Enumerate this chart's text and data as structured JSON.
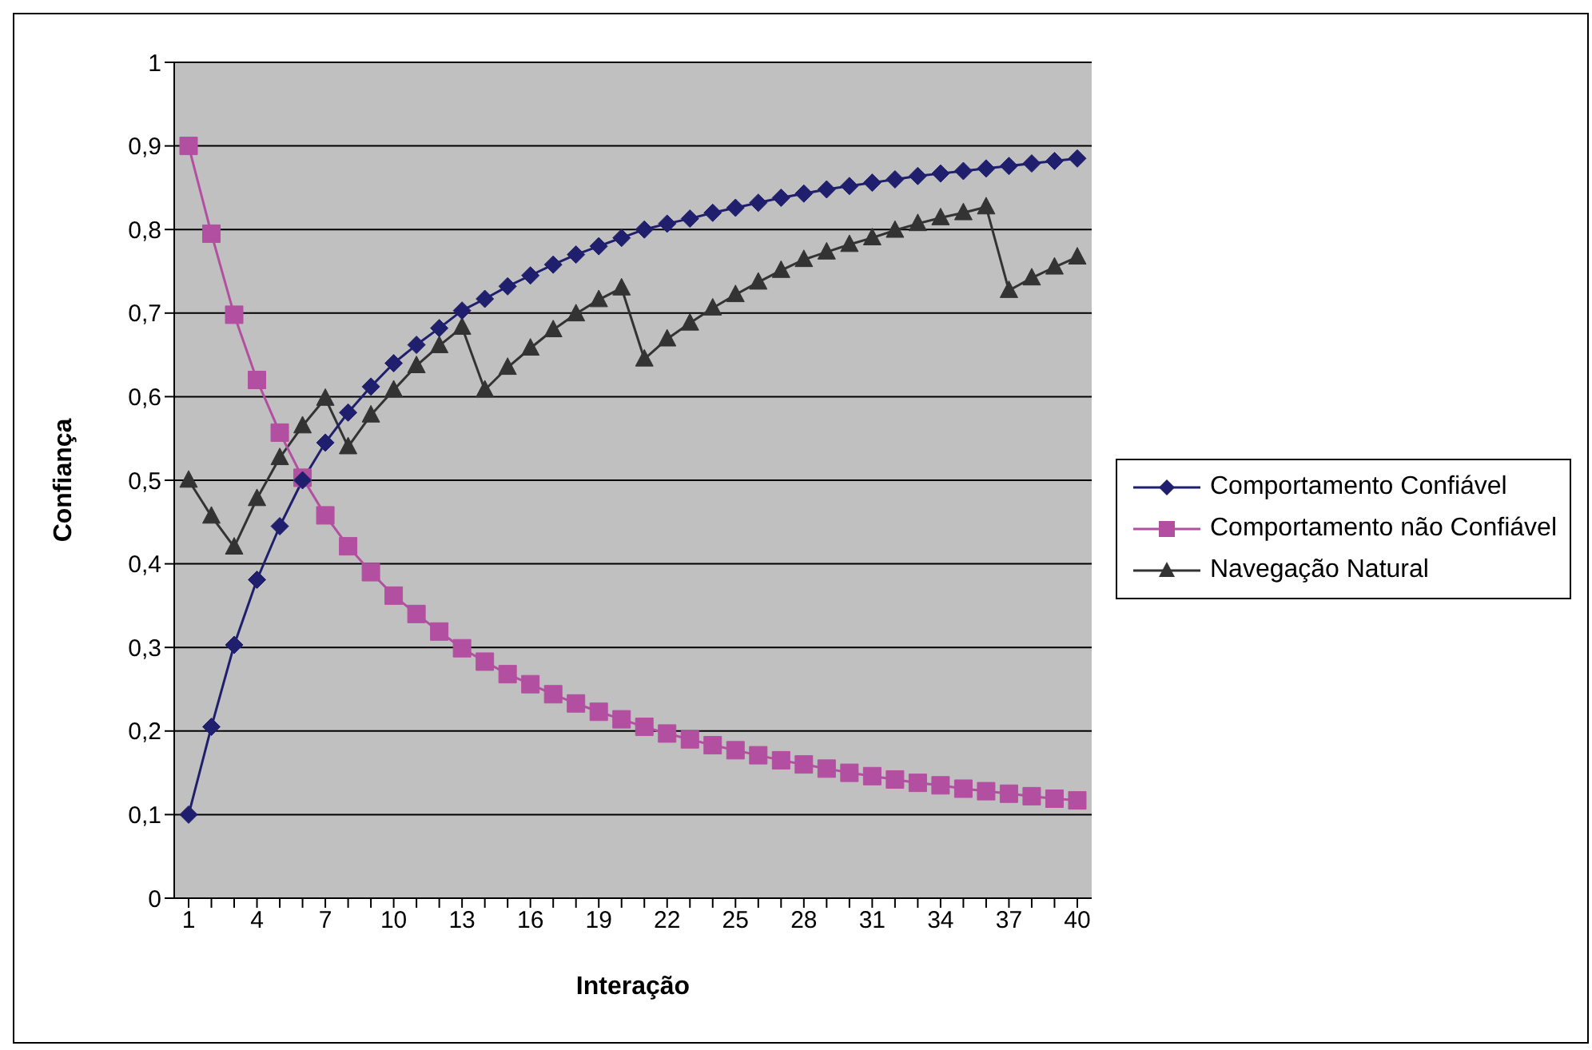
{
  "chart_data": {
    "type": "line",
    "xlabel": "Interação",
    "ylabel": "Confiança",
    "categories": [
      "1",
      null,
      null,
      "4",
      null,
      null,
      "7",
      null,
      null,
      "10",
      null,
      null,
      "13",
      null,
      null,
      "16",
      null,
      null,
      "19",
      null,
      null,
      "22",
      null,
      null,
      "25",
      null,
      null,
      "28",
      null,
      null,
      "31",
      null,
      null,
      "34",
      null,
      null,
      "37",
      null,
      null,
      "40"
    ],
    "series": [
      {
        "name": "Comportamento Confiável",
        "color": "#1f1f6e",
        "marker": "diamond",
        "values": [
          0.1,
          0.205,
          0.303,
          0.381,
          0.445,
          0.5,
          0.545,
          0.581,
          0.612,
          0.64,
          0.662,
          0.682,
          0.703,
          0.717,
          0.732,
          0.745,
          0.758,
          0.77,
          0.78,
          0.79,
          0.8,
          0.807,
          0.813,
          0.82,
          0.826,
          0.832,
          0.838,
          0.843,
          0.848,
          0.852,
          0.856,
          0.86,
          0.864,
          0.867,
          0.87,
          0.873,
          0.876,
          0.879,
          0.882,
          0.885
        ]
      },
      {
        "name": "Comportamento não Confiável",
        "color": "#b34fa0",
        "marker": "square",
        "values": [
          0.9,
          0.795,
          0.698,
          0.62,
          0.557,
          0.503,
          0.458,
          0.421,
          0.39,
          0.362,
          0.34,
          0.319,
          0.299,
          0.283,
          0.268,
          0.256,
          0.244,
          0.233,
          0.223,
          0.214,
          0.205,
          0.197,
          0.19,
          0.183,
          0.177,
          0.171,
          0.165,
          0.16,
          0.155,
          0.15,
          0.146,
          0.142,
          0.138,
          0.135,
          0.131,
          0.128,
          0.125,
          0.122,
          0.119,
          0.117
        ]
      },
      {
        "name": "Navegação Natural",
        "color": "#333333",
        "marker": "triangle",
        "values": [
          0.5,
          0.457,
          0.42,
          0.478,
          0.527,
          0.565,
          0.598,
          0.54,
          0.578,
          0.608,
          0.637,
          0.661,
          0.683,
          0.608,
          0.635,
          0.658,
          0.68,
          0.699,
          0.716,
          0.73,
          0.645,
          0.669,
          0.688,
          0.706,
          0.722,
          0.737,
          0.751,
          0.764,
          0.773,
          0.782,
          0.79,
          0.799,
          0.807,
          0.814,
          0.82,
          0.827,
          0.727,
          0.742,
          0.755,
          0.767
        ]
      }
    ],
    "ylim": [
      0,
      1
    ],
    "yticks": [
      {
        "value": 0,
        "label": "0"
      },
      {
        "value": 0.1,
        "label": "0,1"
      },
      {
        "value": 0.2,
        "label": "0,2"
      },
      {
        "value": 0.3,
        "label": "0,3"
      },
      {
        "value": 0.4,
        "label": "0,4"
      },
      {
        "value": 0.5,
        "label": "0,5"
      },
      {
        "value": 0.6,
        "label": "0,6"
      },
      {
        "value": 0.7,
        "label": "0,7"
      },
      {
        "value": 0.8,
        "label": "0,8"
      },
      {
        "value": 0.9,
        "label": "0,9"
      },
      {
        "value": 1,
        "label": "1"
      }
    ],
    "grid": "y",
    "legend": "right",
    "line_style": "solid"
  }
}
